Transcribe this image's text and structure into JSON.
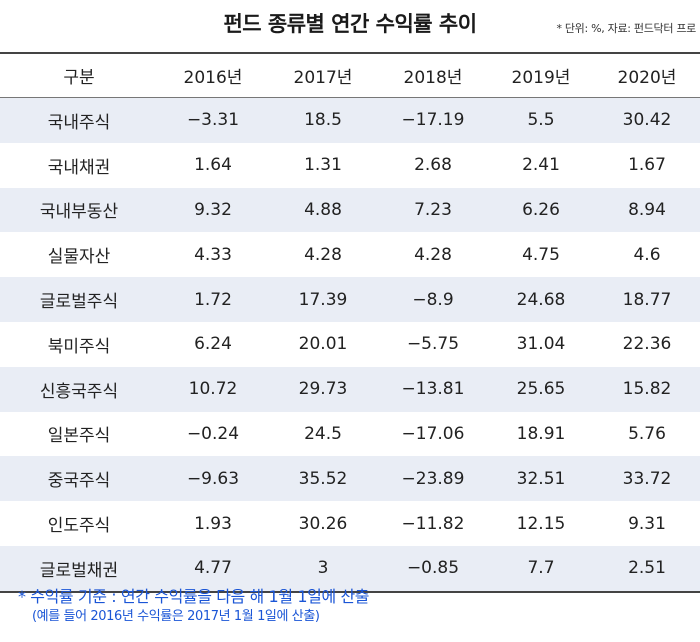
{
  "chart_data": {
    "type": "table",
    "title": "펀드 종류별 연간 수익률 추이",
    "source_note": "* 단위: %, 자료: 펀드닥터 프로",
    "columns": [
      "구분",
      "2016년",
      "2017년",
      "2018년",
      "2019년",
      "2020년"
    ],
    "rows": [
      {
        "label": "국내주식",
        "values": [
          "−3.31",
          "18.5",
          "−17.19",
          "5.5",
          "30.42"
        ]
      },
      {
        "label": "국내채권",
        "values": [
          "1.64",
          "1.31",
          "2.68",
          "2.41",
          "1.67"
        ]
      },
      {
        "label": "국내부동산",
        "values": [
          "9.32",
          "4.88",
          "7.23",
          "6.26",
          "8.94"
        ]
      },
      {
        "label": "실물자산",
        "values": [
          "4.33",
          "4.28",
          "4.28",
          "4.75",
          "4.6"
        ]
      },
      {
        "label": "글로벌주식",
        "values": [
          "1.72",
          "17.39",
          "−8.9",
          "24.68",
          "18.77"
        ]
      },
      {
        "label": "북미주식",
        "values": [
          "6.24",
          "20.01",
          "−5.75",
          "31.04",
          "22.36"
        ]
      },
      {
        "label": "신흥국주식",
        "values": [
          "10.72",
          "29.73",
          "−13.81",
          "25.65",
          "15.82"
        ]
      },
      {
        "label": "일본주식",
        "values": [
          "−0.24",
          "24.5",
          "−17.06",
          "18.91",
          "5.76"
        ]
      },
      {
        "label": "중국주식",
        "values": [
          "−9.63",
          "35.52",
          "−23.89",
          "32.51",
          "33.72"
        ]
      },
      {
        "label": "인도주식",
        "values": [
          "1.93",
          "30.26",
          "−11.82",
          "12.15",
          "9.31"
        ]
      },
      {
        "label": "글로벌채권",
        "values": [
          "4.77",
          "3",
          "−0.85",
          "7.7",
          "2.51"
        ]
      }
    ],
    "footnote": "* 수익률 기준 : 연간 수익률을 다음 해  1월 1일에 산출",
    "footnote_sub": "(예를 들어 2016년 수익률은 2017년 1월 1일에 산출)",
    "colors": {
      "alt_row": "#e9edf5",
      "note": "#1a55d6",
      "rule": "#444444"
    }
  }
}
